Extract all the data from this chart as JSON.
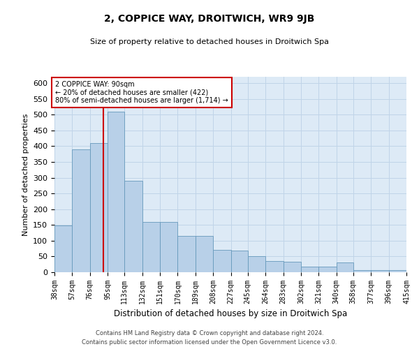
{
  "title": "2, COPPICE WAY, DROITWICH, WR9 9JB",
  "subtitle": "Size of property relative to detached houses in Droitwich Spa",
  "xlabel": "Distribution of detached houses by size in Droitwich Spa",
  "ylabel": "Number of detached properties",
  "footer_line1": "Contains HM Land Registry data © Crown copyright and database right 2024.",
  "footer_line2": "Contains public sector information licensed under the Open Government Licence v3.0.",
  "annotation_title": "2 COPPICE WAY: 90sqm",
  "annotation_line1": "← 20% of detached houses are smaller (422)",
  "annotation_line2": "80% of semi-detached houses are larger (1,714) →",
  "property_size": 90,
  "bar_color": "#b8d0e8",
  "bar_edge_color": "#6699bb",
  "redline_color": "#cc0000",
  "annotation_box_color": "#cc0000",
  "grid_color": "#c0d4e8",
  "background_color": "#ddeaf6",
  "bin_labels": [
    "38sqm",
    "57sqm",
    "76sqm",
    "95sqm",
    "113sqm",
    "132sqm",
    "151sqm",
    "170sqm",
    "189sqm",
    "208sqm",
    "227sqm",
    "245sqm",
    "264sqm",
    "283sqm",
    "302sqm",
    "321sqm",
    "340sqm",
    "358sqm",
    "377sqm",
    "396sqm",
    "415sqm"
  ],
  "bin_edges": [
    38,
    57,
    76,
    95,
    113,
    132,
    151,
    170,
    189,
    208,
    227,
    245,
    264,
    283,
    302,
    321,
    340,
    358,
    377,
    396,
    415
  ],
  "bar_heights": [
    148,
    390,
    410,
    510,
    290,
    160,
    160,
    115,
    115,
    70,
    68,
    52,
    35,
    33,
    18,
    18,
    30,
    7,
    7,
    7,
    7
  ],
  "ylim": [
    0,
    620
  ],
  "yticks": [
    0,
    50,
    100,
    150,
    200,
    250,
    300,
    350,
    400,
    450,
    500,
    550,
    600
  ]
}
